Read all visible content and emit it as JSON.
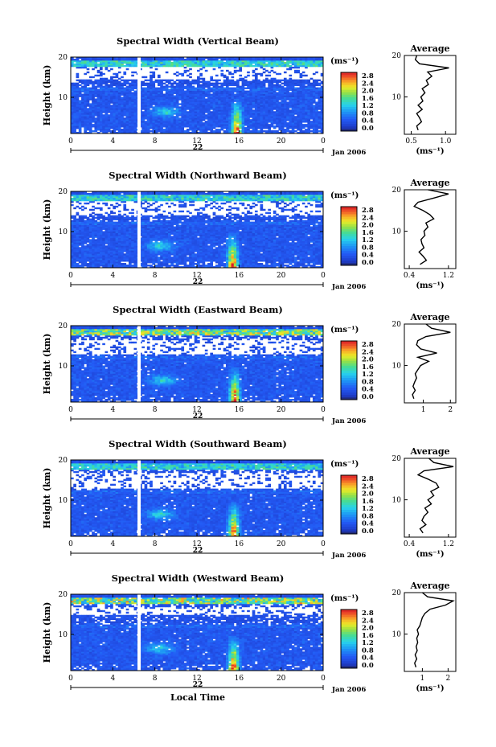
{
  "chart_data": [
    {
      "type": "heatmap",
      "title": "Spectral Width (Vertical Beam)",
      "ylabel": "Height (km)",
      "yticks": [
        "20",
        "10"
      ],
      "xticks": [
        "0",
        "4",
        "8",
        "12",
        "16",
        "20",
        "0"
      ],
      "day": "22",
      "date_label": "Jan 2006",
      "colorbar_unit": "(ms⁻¹)",
      "colorbar_ticks": [
        "2.8",
        "2.4",
        "2.0",
        "1.6",
        "1.2",
        "0.8",
        "0.4",
        "0.0"
      ],
      "gap_time": 6.5,
      "features": {
        "hot_time": 15.8,
        "mid_time": 9.0,
        "white_band": [
          14.5,
          17.5
        ]
      },
      "profile": {
        "title": "Average",
        "xlabel": "(ms⁻¹)",
        "xticks": [
          "0.5",
          "1.0"
        ],
        "yticks": [
          "20",
          "10"
        ],
        "xlim": [
          0.4,
          1.15
        ],
        "heights": [
          2,
          3,
          4,
          5,
          6,
          7,
          8,
          9,
          10,
          11,
          12,
          13,
          14,
          15,
          16,
          17,
          18,
          19,
          20
        ],
        "values": [
          0.6,
          0.58,
          0.65,
          0.62,
          0.58,
          0.66,
          0.6,
          0.67,
          0.64,
          0.7,
          0.66,
          0.75,
          0.72,
          0.8,
          0.74,
          1.05,
          0.62,
          0.56,
          0.58
        ]
      }
    },
    {
      "type": "heatmap",
      "title": "Spectral Width (Northward Beam)",
      "ylabel": "Height (km)",
      "yticks": [
        "20",
        "10"
      ],
      "xticks": [
        "0",
        "4",
        "8",
        "12",
        "16",
        "20",
        "0"
      ],
      "day": "22",
      "date_label": "Jan 2006",
      "colorbar_unit": "(ms⁻¹)",
      "colorbar_ticks": [
        "2.8",
        "2.4",
        "2.0",
        "1.6",
        "1.2",
        "0.8",
        "0.4",
        "0.0"
      ],
      "gap_time": 6.5,
      "features": {
        "hot_time": 15.4,
        "mid_time": 8.5,
        "white_band": [
          14.0,
          17.5
        ]
      },
      "profile": {
        "title": "Average",
        "xlabel": "(ms⁻¹)",
        "xticks": [
          "0.4",
          "1.2"
        ],
        "yticks": [
          "20",
          "10"
        ],
        "xlim": [
          0.3,
          1.35
        ],
        "heights": [
          2,
          3,
          4,
          5,
          6,
          7,
          8,
          9,
          10,
          11,
          12,
          13,
          14,
          15,
          16,
          17,
          18,
          19,
          20
        ],
        "values": [
          0.62,
          0.75,
          0.68,
          0.6,
          0.7,
          0.66,
          0.64,
          0.72,
          0.7,
          0.78,
          0.74,
          0.9,
          0.82,
          0.68,
          0.5,
          0.58,
          0.9,
          1.2,
          0.78
        ]
      }
    },
    {
      "type": "heatmap",
      "title": "Spectral Width (Eastward Beam)",
      "ylabel": "Height (km)",
      "yticks": [
        "20",
        "10"
      ],
      "xticks": [
        "0",
        "4",
        "8",
        "12",
        "16",
        "20",
        "0"
      ],
      "day": "22",
      "date_label": "Jan 2006",
      "colorbar_unit": "(ms⁻¹)",
      "colorbar_ticks": [
        "2.8",
        "2.4",
        "2.0",
        "1.6",
        "1.2",
        "0.8",
        "0.4",
        "0.0"
      ],
      "gap_time": 6.5,
      "features": {
        "hot_time": 15.6,
        "mid_time": 8.8,
        "white_band": [
          13.0,
          16.5
        ]
      },
      "profile": {
        "title": "Average",
        "xlabel": "",
        "xticks": [
          "1",
          "2"
        ],
        "yticks": [
          "20",
          "10"
        ],
        "xlim": [
          0.3,
          2.2
        ],
        "heights": [
          2,
          3,
          4,
          5,
          6,
          7,
          8,
          9,
          10,
          11,
          12,
          13,
          14,
          15,
          16,
          17,
          18,
          19,
          20
        ],
        "values": [
          0.65,
          0.6,
          0.7,
          0.62,
          0.68,
          0.75,
          0.7,
          0.8,
          0.9,
          1.2,
          0.8,
          1.5,
          0.9,
          0.75,
          0.8,
          1.1,
          2.0,
          1.3,
          1.1
        ]
      }
    },
    {
      "type": "heatmap",
      "title": "Spectral Width (Southward Beam)",
      "ylabel": "Height (km)",
      "yticks": [
        "20",
        "10"
      ],
      "xticks": [
        "0",
        "4",
        "8",
        "12",
        "16",
        "20",
        "0"
      ],
      "day": "22",
      "date_label": "Jan 2006",
      "colorbar_unit": "(ms⁻¹)",
      "colorbar_ticks": [
        "2.8",
        "2.4",
        "2.0",
        "1.6",
        "1.2",
        "0.8",
        "0.4",
        "0.0"
      ],
      "gap_time": 6.5,
      "features": {
        "hot_time": 15.5,
        "mid_time": 8.5,
        "white_band": [
          13.0,
          17.0
        ]
      },
      "profile": {
        "title": "Average",
        "xlabel": "(ms⁻¹)",
        "xticks": [
          "0.4",
          "1.2"
        ],
        "yticks": [
          "20",
          "10"
        ],
        "xlim": [
          0.3,
          1.35
        ],
        "heights": [
          2,
          3,
          4,
          5,
          6,
          7,
          8,
          9,
          10,
          11,
          12,
          13,
          14,
          15,
          16,
          17,
          18,
          19,
          20
        ],
        "values": [
          0.68,
          0.62,
          0.74,
          0.66,
          0.7,
          0.78,
          0.72,
          0.85,
          0.78,
          0.9,
          0.84,
          1.0,
          0.95,
          0.78,
          0.58,
          0.7,
          1.3,
          0.9,
          0.8
        ]
      }
    },
    {
      "type": "heatmap",
      "title": "Spectral Width (Westward Beam)",
      "ylabel": "Height (km)",
      "yticks": [
        "20",
        "10"
      ],
      "xticks": [
        "0",
        "4",
        "8",
        "12",
        "16",
        "20",
        "0"
      ],
      "day": "22",
      "date_label": "Jan 2006",
      "xlabel": "Local Time",
      "colorbar_unit": "(ms⁻¹)",
      "colorbar_ticks": [
        "2.8",
        "2.4",
        "2.0",
        "1.6",
        "1.2",
        "0.8",
        "0.4",
        "0.0"
      ],
      "gap_time": 6.5,
      "features": {
        "hot_time": 15.5,
        "mid_time": 8.5,
        "white_band": [
          15.0,
          16.8
        ]
      },
      "profile": {
        "title": "Average",
        "xlabel": "(ms⁻¹)",
        "xticks": [
          "1",
          "2"
        ],
        "yticks": [
          "20",
          "10"
        ],
        "xlim": [
          0.3,
          2.3
        ],
        "heights": [
          2,
          3,
          4,
          5,
          6,
          7,
          8,
          9,
          10,
          11,
          12,
          13,
          14,
          15,
          16,
          17,
          18,
          19,
          20
        ],
        "values": [
          0.75,
          0.7,
          0.78,
          0.72,
          0.8,
          0.76,
          0.82,
          0.78,
          0.85,
          0.8,
          0.9,
          0.95,
          1.0,
          1.1,
          1.3,
          1.9,
          2.2,
          1.2,
          1.0
        ]
      }
    }
  ]
}
